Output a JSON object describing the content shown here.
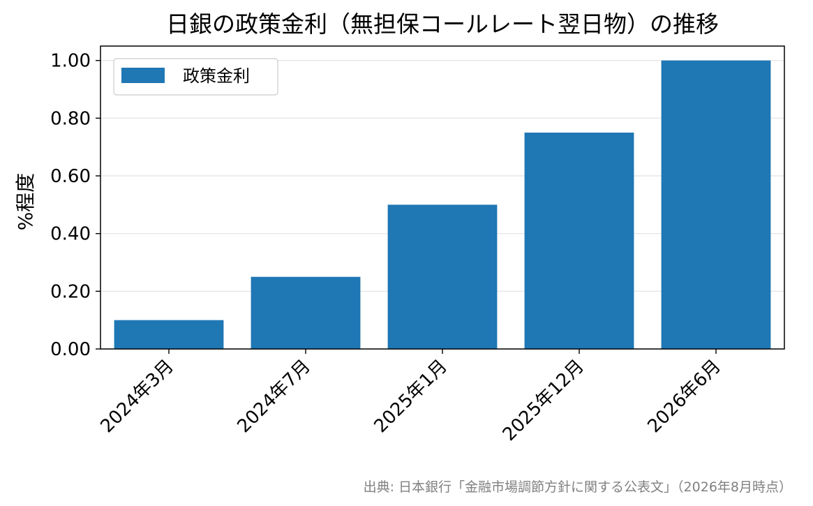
{
  "chart_data": {
    "type": "bar",
    "title": "日銀の政策金利（無担保コールレート翌日物）の推移",
    "ylabel": "%程度",
    "xlabel": "",
    "categories": [
      "2024年3月",
      "2024年7月",
      "2025年1月",
      "2025年12月",
      "2026年6月"
    ],
    "series": [
      {
        "name": "政策金利",
        "values": [
          0.1,
          0.25,
          0.5,
          0.75,
          1.0
        ]
      }
    ],
    "ylim": [
      0,
      1.05
    ],
    "yticks": [
      "0.00",
      "0.20",
      "0.40",
      "0.60",
      "0.80",
      "1.00"
    ],
    "grid": "y",
    "legend": "top-left",
    "bar_color": "#1f77b4",
    "source": "出典: 日本銀行「金融市場調節方針に関する公表文」（2026年8月時点）"
  }
}
